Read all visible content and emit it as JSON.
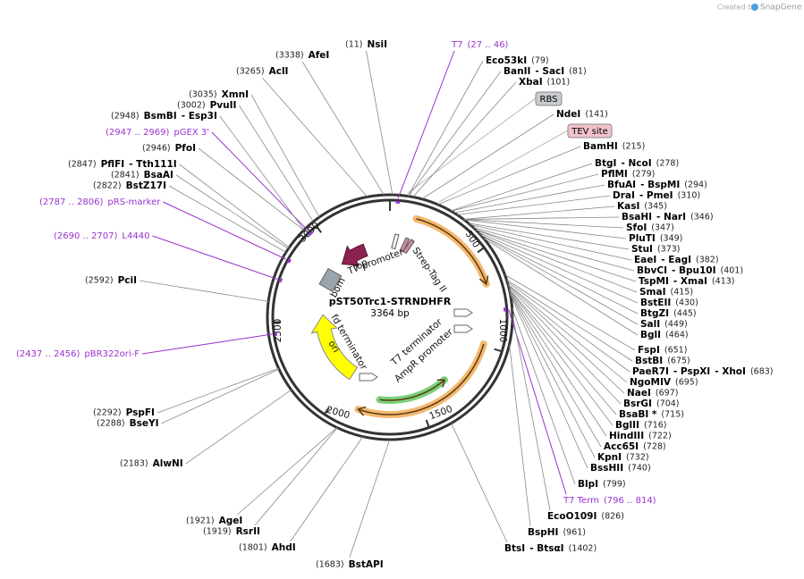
{
  "header": {
    "credit": "Created by",
    "brand": "SnapGene"
  },
  "plasmid": {
    "name": "pST50Trc1-STRNDHFR",
    "size": "3364 bp"
  },
  "ring_ticks": [
    "500",
    "1000",
    "1500",
    "2000",
    "2500",
    "3000"
  ],
  "features": [
    "T7 promoter",
    "Strep-Tag II",
    "rop",
    "bom",
    "fd terminator",
    "ori",
    "T7 terminator",
    "AmpR promoter"
  ],
  "boxed_features": [
    "RBS",
    "TEV site"
  ],
  "sites": [
    {
      "parts": [
        "(11)",
        "NsiI"
      ]
    },
    {
      "parts": [
        "(3338)",
        "AfeI"
      ]
    },
    {
      "parts": [
        "(3265)",
        "AclI"
      ]
    },
    {
      "parts": [
        "T7",
        "(27 .. 46)"
      ],
      "color": "#9933cc"
    },
    {
      "parts": [
        "Eco53kI",
        "(79)"
      ]
    },
    {
      "parts": [
        "BanII",
        "- SacI",
        "(81)"
      ]
    },
    {
      "parts": [
        "XbaI",
        "(101)"
      ]
    },
    {
      "parts": [
        "NdeI",
        "(141)"
      ]
    },
    {
      "parts": [
        "BamHI",
        "(215)"
      ]
    },
    {
      "parts": [
        "BtgI",
        "- NcoI",
        "(278)"
      ]
    },
    {
      "parts": [
        "PflMI",
        "(279)"
      ]
    },
    {
      "parts": [
        "BfuAI",
        "- BspMI",
        "(294)"
      ]
    },
    {
      "parts": [
        "DraI",
        "- PmeI",
        "(310)"
      ]
    },
    {
      "parts": [
        "KasI",
        "(345)"
      ]
    },
    {
      "parts": [
        "BsaHI",
        "- NarI",
        "(346)"
      ]
    },
    {
      "parts": [
        "SfoI",
        "(347)"
      ]
    },
    {
      "parts": [
        "PluTI",
        "(349)"
      ]
    },
    {
      "parts": [
        "StuI",
        "(373)"
      ]
    },
    {
      "parts": [
        "EaeI",
        "- EagI",
        "(382)"
      ]
    },
    {
      "parts": [
        "BbvCI",
        "- Bpu10I",
        "(401)"
      ]
    },
    {
      "parts": [
        "TspMI",
        "- XmaI",
        "(413)"
      ]
    },
    {
      "parts": [
        "SmaI",
        "(415)"
      ]
    },
    {
      "parts": [
        "BstEII",
        "(430)"
      ]
    },
    {
      "parts": [
        "BtgZI",
        "(445)"
      ]
    },
    {
      "parts": [
        "SalI",
        "(449)"
      ]
    },
    {
      "parts": [
        "BglI",
        "(464)"
      ]
    },
    {
      "parts": [
        "FspI",
        "(651)"
      ]
    },
    {
      "parts": [
        "BstBI",
        "(675)"
      ]
    },
    {
      "parts": [
        "PaeR7I",
        "- PspXI",
        "- XhoI",
        "(683)"
      ]
    },
    {
      "parts": [
        "NgoMIV",
        "(695)"
      ]
    },
    {
      "parts": [
        "NaeI",
        "(697)"
      ]
    },
    {
      "parts": [
        "BsrGI",
        "(704)"
      ]
    },
    {
      "parts": [
        "BsaBI *",
        "(715)"
      ]
    },
    {
      "parts": [
        "BglII",
        "(716)"
      ]
    },
    {
      "parts": [
        "HindIII",
        "(722)"
      ]
    },
    {
      "parts": [
        "Acc65I",
        "(728)"
      ]
    },
    {
      "parts": [
        "KpnI",
        "(732)"
      ]
    },
    {
      "parts": [
        "BssHII",
        "(740)"
      ]
    },
    {
      "parts": [
        "BlpI",
        "(799)"
      ]
    },
    {
      "parts": [
        "T7 Term",
        "(796 .. 814)"
      ],
      "color": "#9933cc"
    },
    {
      "parts": [
        "EcoO109I",
        "(826)"
      ]
    },
    {
      "parts": [
        "BspHI",
        "(961)"
      ]
    },
    {
      "parts": [
        "BtsI",
        "- BtsαI",
        "(1402)"
      ]
    },
    {
      "parts": [
        "(1683)",
        "BstAPI"
      ]
    },
    {
      "parts": [
        "(1801)",
        "AhdI"
      ]
    },
    {
      "parts": [
        "(1919)",
        "RsrII"
      ]
    },
    {
      "parts": [
        "(1921)",
        "AgeI"
      ]
    },
    {
      "parts": [
        "(2183)",
        "AlwNI"
      ]
    },
    {
      "parts": [
        "(2288)",
        "BseYI"
      ]
    },
    {
      "parts": [
        "(2292)",
        "PspFI"
      ]
    },
    {
      "parts": [
        "(2437 .. 2456)",
        "pBR322ori-F"
      ],
      "color": "#9933cc"
    },
    {
      "parts": [
        "(2592)",
        "PciI"
      ]
    },
    {
      "parts": [
        "(2690 .. 2707)",
        "L4440"
      ],
      "color": "#9933cc"
    },
    {
      "parts": [
        "(2787 .. 2806)",
        "pRS-marker"
      ],
      "color": "#9933cc"
    },
    {
      "parts": [
        "(2822)",
        "BstZ17I"
      ]
    },
    {
      "parts": [
        "(2841)",
        "BsaAI"
      ]
    },
    {
      "parts": [
        "(2847)",
        "PflFI",
        "- Tth111I"
      ]
    },
    {
      "parts": [
        "(2946)",
        "PfoI"
      ]
    },
    {
      "parts": [
        "(2947 .. 2969)",
        "pGEX 3'"
      ],
      "color": "#9933cc"
    },
    {
      "parts": [
        "(2948)",
        "BsmBI",
        "- Esp3I"
      ]
    },
    {
      "parts": [
        "(3002)",
        "PvuII"
      ]
    },
    {
      "parts": [
        "(3035)",
        "XmnI"
      ]
    }
  ]
}
